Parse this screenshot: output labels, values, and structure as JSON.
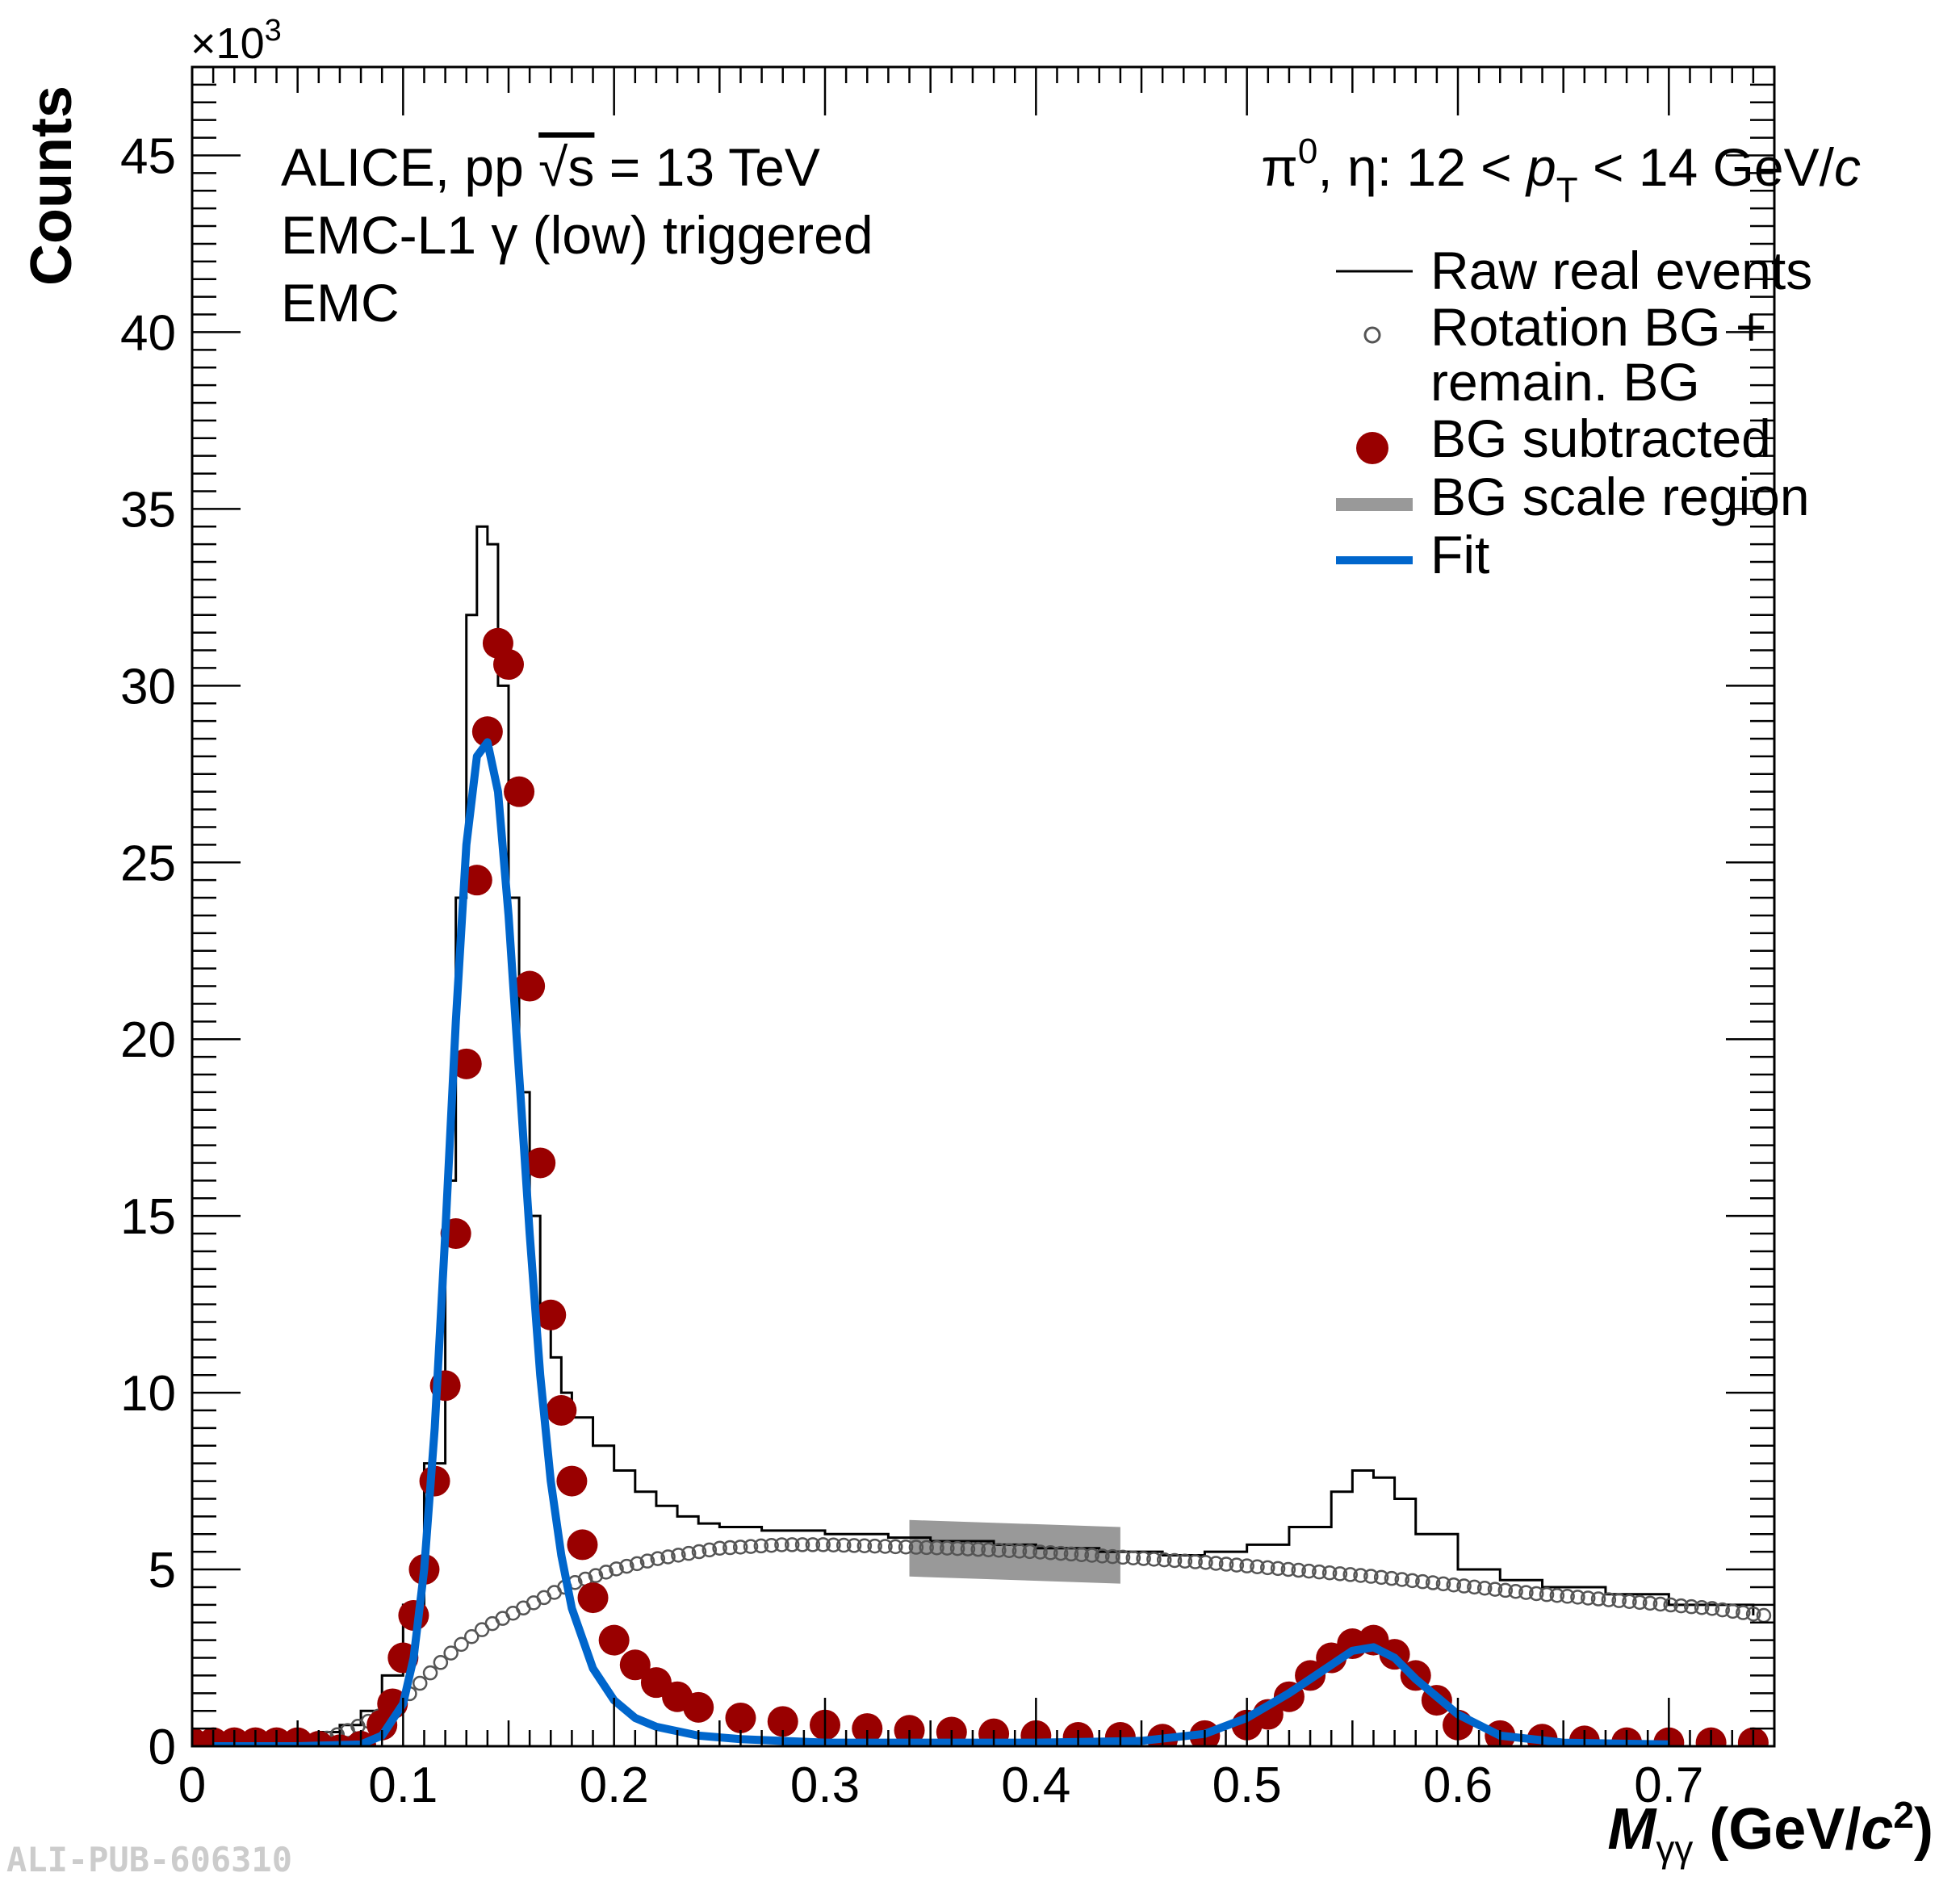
{
  "watermark": "ALI-PUB-606310",
  "chart_data": {
    "type": "line",
    "xlabel_main": "M",
    "xlabel_sub": "γγ",
    "xlabel_unit": " (GeV/",
    "xlabel_unit_c": "c",
    "xlabel_unit_exp": "2",
    "xlabel_unit_close": ")",
    "ylabel": "Counts",
    "y_multiplier_base": "×10",
    "y_multiplier_exp": "3",
    "xlim": [
      0,
      0.75
    ],
    "ylim": [
      0,
      47.5
    ],
    "x_ticks": [
      {
        "v": 0,
        "label": "0"
      },
      {
        "v": 0.1,
        "label": "0.1"
      },
      {
        "v": 0.2,
        "label": "0.2"
      },
      {
        "v": 0.3,
        "label": "0.3"
      },
      {
        "v": 0.4,
        "label": "0.4"
      },
      {
        "v": 0.5,
        "label": "0.5"
      },
      {
        "v": 0.6,
        "label": "0.6"
      },
      {
        "v": 0.7,
        "label": "0.7"
      }
    ],
    "y_ticks": [
      {
        "v": 0,
        "label": "0"
      },
      {
        "v": 5,
        "label": "5"
      },
      {
        "v": 10,
        "label": "10"
      },
      {
        "v": 15,
        "label": "15"
      },
      {
        "v": 20,
        "label": "20"
      },
      {
        "v": 25,
        "label": "25"
      },
      {
        "v": 30,
        "label": "30"
      },
      {
        "v": 35,
        "label": "35"
      },
      {
        "v": 40,
        "label": "40"
      },
      {
        "v": 45,
        "label": "45"
      }
    ],
    "annotation_lines": {
      "line1_a": "ALICE, pp ",
      "line1_sqrt": "√s",
      "line1_b": " = 13 TeV",
      "line2": "EMC-L1 γ (low) triggered",
      "line3": "EMC",
      "kin_a": "π",
      "kin_a_sup": "0",
      "kin_b": ", η:  12 < ",
      "kin_p": "p",
      "kin_p_sub": "T",
      "kin_c": " <  14 GeV/",
      "kin_c_it": "c"
    },
    "legend": [
      {
        "key": "raw",
        "label": "Raw real events"
      },
      {
        "key": "bg",
        "label": "Rotation BG +"
      },
      {
        "key": "bg2",
        "label": "remain. BG"
      },
      {
        "key": "sub",
        "label": "BG subtracted"
      },
      {
        "key": "scale",
        "label": "BG scale region"
      },
      {
        "key": "fit",
        "label": "Fit"
      }
    ],
    "bg_scale_region": {
      "x": [
        0.34,
        0.44
      ],
      "y_low": [
        4.8,
        4.6
      ],
      "y_high": [
        6.4,
        6.2
      ]
    },
    "series": [
      {
        "name": "Raw real events",
        "style": "step",
        "color": "#000000",
        "x": [
          0.01,
          0.02,
          0.03,
          0.04,
          0.05,
          0.06,
          0.07,
          0.08,
          0.09,
          0.1,
          0.11,
          0.12,
          0.125,
          0.13,
          0.135,
          0.14,
          0.145,
          0.15,
          0.155,
          0.16,
          0.165,
          0.17,
          0.175,
          0.18,
          0.19,
          0.2,
          0.21,
          0.22,
          0.23,
          0.24,
          0.25,
          0.27,
          0.3,
          0.33,
          0.35,
          0.38,
          0.4,
          0.43,
          0.46,
          0.48,
          0.5,
          0.52,
          0.54,
          0.55,
          0.56,
          0.57,
          0.58,
          0.6,
          0.62,
          0.64,
          0.67,
          0.7,
          0.74
        ],
        "y": [
          0.1,
          0.1,
          0.15,
          0.2,
          0.3,
          0.4,
          0.6,
          1.0,
          2.0,
          4.0,
          8.0,
          16.0,
          24.0,
          32.0,
          34.5,
          34.0,
          30.0,
          24.0,
          18.5,
          15.0,
          12.5,
          11.0,
          10.0,
          9.3,
          8.5,
          7.8,
          7.2,
          6.8,
          6.5,
          6.3,
          6.2,
          6.1,
          6.0,
          5.9,
          5.8,
          5.7,
          5.6,
          5.5,
          5.4,
          5.5,
          5.7,
          6.2,
          7.2,
          7.8,
          7.6,
          7.0,
          6.0,
          5.0,
          4.7,
          4.5,
          4.3,
          4.0,
          3.7
        ]
      },
      {
        "name": "Rotation BG + remain. BG",
        "style": "open-circles",
        "color": "#555555",
        "x": [
          0.01,
          0.03,
          0.05,
          0.06,
          0.07,
          0.08,
          0.09,
          0.1,
          0.11,
          0.12,
          0.13,
          0.14,
          0.15,
          0.16,
          0.17,
          0.18,
          0.2,
          0.22,
          0.25,
          0.28,
          0.3,
          0.33,
          0.36,
          0.4,
          0.44,
          0.48,
          0.52,
          0.56,
          0.6,
          0.64,
          0.68,
          0.72,
          0.745
        ],
        "y": [
          0.0,
          0.0,
          0.05,
          0.15,
          0.35,
          0.6,
          0.9,
          1.3,
          1.9,
          2.5,
          3.0,
          3.4,
          3.7,
          4.0,
          4.3,
          4.6,
          5.0,
          5.3,
          5.6,
          5.7,
          5.7,
          5.65,
          5.6,
          5.5,
          5.35,
          5.2,
          5.0,
          4.8,
          4.55,
          4.3,
          4.1,
          3.9,
          3.7
        ]
      },
      {
        "name": "BG subtracted",
        "style": "filled-circles",
        "color": "#990000",
        "x": [
          0.0,
          0.01,
          0.02,
          0.03,
          0.04,
          0.05,
          0.06,
          0.07,
          0.08,
          0.09,
          0.095,
          0.1,
          0.105,
          0.11,
          0.115,
          0.12,
          0.125,
          0.13,
          0.135,
          0.14,
          0.145,
          0.15,
          0.155,
          0.16,
          0.165,
          0.17,
          0.175,
          0.18,
          0.185,
          0.19,
          0.2,
          0.21,
          0.22,
          0.23,
          0.24,
          0.26,
          0.28,
          0.3,
          0.32,
          0.34,
          0.36,
          0.38,
          0.4,
          0.42,
          0.44,
          0.46,
          0.48,
          0.5,
          0.51,
          0.52,
          0.53,
          0.54,
          0.55,
          0.56,
          0.57,
          0.58,
          0.59,
          0.6,
          0.62,
          0.64,
          0.66,
          0.68,
          0.7,
          0.72,
          0.74
        ],
        "y": [
          0.1,
          0.1,
          0.1,
          0.1,
          0.1,
          0.1,
          0.0,
          -0.1,
          0.0,
          0.6,
          1.2,
          2.5,
          3.7,
          5.0,
          7.5,
          10.2,
          14.5,
          19.3,
          24.5,
          28.7,
          31.2,
          30.6,
          27.0,
          21.5,
          16.5,
          12.2,
          9.5,
          7.5,
          5.7,
          4.2,
          3.0,
          2.3,
          1.8,
          1.4,
          1.1,
          0.8,
          0.7,
          0.6,
          0.5,
          0.45,
          0.4,
          0.35,
          0.3,
          0.25,
          0.25,
          0.2,
          0.3,
          0.6,
          0.9,
          1.4,
          2.0,
          2.5,
          2.9,
          3.0,
          2.6,
          2.0,
          1.3,
          0.6,
          0.3,
          0.2,
          0.15,
          0.1,
          0.1,
          0.1,
          0.1
        ]
      },
      {
        "name": "Fit",
        "style": "line",
        "color": "#0066cc",
        "x": [
          0.01,
          0.05,
          0.08,
          0.09,
          0.1,
          0.105,
          0.11,
          0.115,
          0.12,
          0.125,
          0.13,
          0.135,
          0.14,
          0.145,
          0.15,
          0.155,
          0.16,
          0.165,
          0.17,
          0.175,
          0.18,
          0.19,
          0.2,
          0.21,
          0.22,
          0.24,
          0.26,
          0.3,
          0.35,
          0.4,
          0.45,
          0.48,
          0.5,
          0.52,
          0.54,
          0.55,
          0.56,
          0.57,
          0.58,
          0.6,
          0.62,
          0.65,
          0.7
        ],
        "y": [
          0.0,
          0.0,
          0.05,
          0.3,
          1.2,
          2.5,
          5.0,
          9.0,
          14.5,
          20.5,
          25.5,
          28.0,
          28.4,
          27.0,
          23.5,
          19.0,
          14.5,
          10.5,
          7.5,
          5.4,
          3.9,
          2.2,
          1.3,
          0.8,
          0.55,
          0.3,
          0.2,
          0.1,
          0.1,
          0.1,
          0.15,
          0.35,
          0.8,
          1.5,
          2.3,
          2.7,
          2.8,
          2.5,
          1.9,
          0.9,
          0.3,
          0.1,
          0.05
        ]
      }
    ]
  }
}
